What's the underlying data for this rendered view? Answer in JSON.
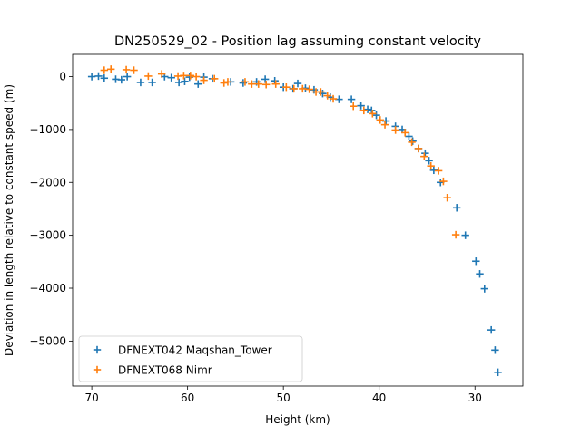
{
  "chart_data": {
    "type": "scatter",
    "title": "DN250529_02 - Position lag assuming constant velocity",
    "xlabel": "Height (km)",
    "ylabel": "Deviation in length relative to constant speed (m)",
    "xlim": [
      72,
      25
    ],
    "ylim": [
      -5850,
      420
    ],
    "xticks": [
      70,
      60,
      50,
      40,
      30
    ],
    "yticks": [
      0,
      -1000,
      -2000,
      -3000,
      -4000,
      -5000
    ],
    "grid": false,
    "legend_position": "lower-left",
    "marker": "+",
    "series": [
      {
        "name": "DFNEXT042 Maqshan_Tower",
        "color": "#1f77b4",
        "points": [
          [
            70.0,
            0
          ],
          [
            69.3,
            10
          ],
          [
            68.7,
            -30
          ],
          [
            67.5,
            -50
          ],
          [
            66.9,
            -60
          ],
          [
            66.3,
            0
          ],
          [
            64.9,
            -110
          ],
          [
            63.7,
            -110
          ],
          [
            62.4,
            0
          ],
          [
            61.7,
            -20
          ],
          [
            60.9,
            -110
          ],
          [
            60.3,
            -90
          ],
          [
            59.8,
            -10
          ],
          [
            58.9,
            -140
          ],
          [
            58.3,
            -10
          ],
          [
            57.4,
            -40
          ],
          [
            55.5,
            -100
          ],
          [
            54.2,
            -120
          ],
          [
            52.8,
            -100
          ],
          [
            51.9,
            -50
          ],
          [
            50.9,
            -80
          ],
          [
            50.0,
            -200
          ],
          [
            49.0,
            -230
          ],
          [
            48.5,
            -130
          ],
          [
            47.7,
            -220
          ],
          [
            46.8,
            -250
          ],
          [
            45.9,
            -320
          ],
          [
            45.1,
            -390
          ],
          [
            44.2,
            -430
          ],
          [
            42.9,
            -430
          ],
          [
            41.9,
            -550
          ],
          [
            41.2,
            -620
          ],
          [
            40.8,
            -640
          ],
          [
            40.3,
            -730
          ],
          [
            39.3,
            -840
          ],
          [
            38.3,
            -940
          ],
          [
            37.6,
            -1000
          ],
          [
            36.9,
            -1130
          ],
          [
            36.5,
            -1220
          ],
          [
            35.9,
            -1360
          ],
          [
            35.2,
            -1450
          ],
          [
            34.8,
            -1590
          ],
          [
            34.3,
            -1770
          ],
          [
            33.6,
            -2000
          ],
          [
            31.9,
            -2480
          ],
          [
            31.0,
            -3000
          ],
          [
            29.9,
            -3490
          ],
          [
            29.5,
            -3730
          ],
          [
            29.0,
            -4010
          ],
          [
            28.3,
            -4790
          ],
          [
            27.9,
            -5170
          ],
          [
            27.6,
            -5590
          ]
        ]
      },
      {
        "name": "DFNEXT068 Nimr",
        "color": "#ff7f0e",
        "points": [
          [
            68.7,
            120
          ],
          [
            68.0,
            140
          ],
          [
            66.4,
            130
          ],
          [
            65.6,
            120
          ],
          [
            64.1,
            10
          ],
          [
            62.7,
            50
          ],
          [
            61.0,
            10
          ],
          [
            60.4,
            20
          ],
          [
            59.7,
            20
          ],
          [
            59.1,
            0
          ],
          [
            58.3,
            -70
          ],
          [
            57.2,
            -40
          ],
          [
            56.2,
            -120
          ],
          [
            55.8,
            -100
          ],
          [
            54.0,
            -100
          ],
          [
            53.3,
            -140
          ],
          [
            52.6,
            -140
          ],
          [
            51.8,
            -150
          ],
          [
            50.8,
            -140
          ],
          [
            49.7,
            -200
          ],
          [
            48.9,
            -230
          ],
          [
            48.0,
            -230
          ],
          [
            47.3,
            -240
          ],
          [
            46.6,
            -290
          ],
          [
            46.1,
            -290
          ],
          [
            45.4,
            -360
          ],
          [
            44.8,
            -420
          ],
          [
            42.7,
            -560
          ],
          [
            41.6,
            -640
          ],
          [
            40.7,
            -700
          ],
          [
            39.9,
            -820
          ],
          [
            39.4,
            -910
          ],
          [
            38.3,
            -1010
          ],
          [
            37.3,
            -1060
          ],
          [
            36.6,
            -1240
          ],
          [
            35.9,
            -1360
          ],
          [
            35.3,
            -1510
          ],
          [
            34.6,
            -1690
          ],
          [
            33.8,
            -1780
          ],
          [
            33.3,
            -1980
          ],
          [
            32.9,
            -2290
          ],
          [
            32.0,
            -2990
          ]
        ]
      }
    ]
  }
}
